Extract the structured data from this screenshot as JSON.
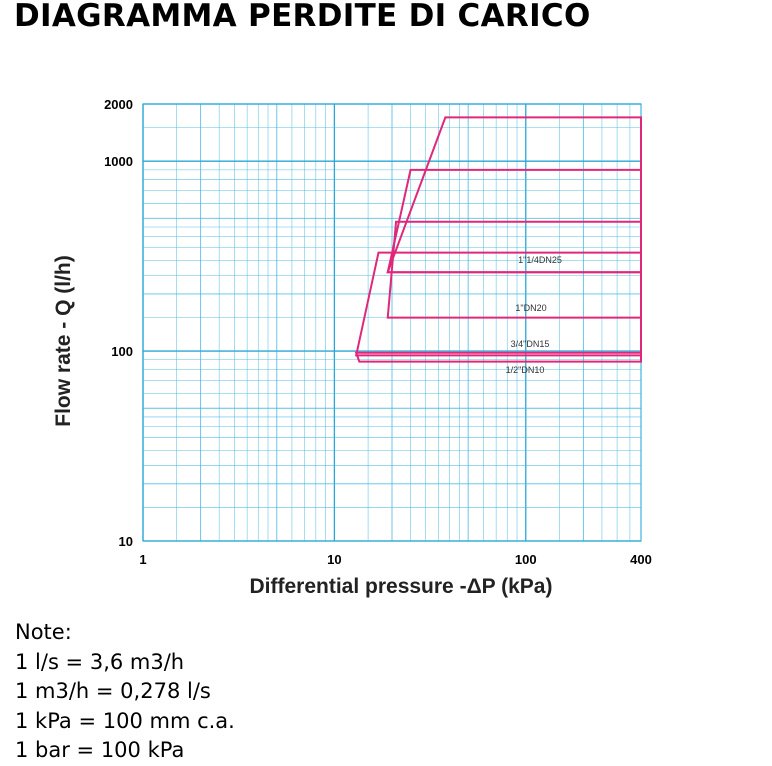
{
  "page": {
    "title": "DIAGRAMMA PERDITE DI CARICO",
    "notes_heading": "Note:",
    "notes": [
      "1 l/s = 3,6 m3/h",
      "1 m3/h = 0,278 l/s",
      "1 kPa = 100 mm c.a.",
      "1 bar = 100 kPa"
    ]
  },
  "colors": {
    "grid": "#3fb6e0",
    "grid_major": "#2aa6d6",
    "curves": "#e0277a"
  },
  "chart_data": {
    "type": "line",
    "title": "",
    "xlabel": "Differential pressure -ΔP (kPa)",
    "ylabel": "Flow rate - Q (l/h)",
    "x_scale": "log",
    "y_scale": "log",
    "xlim": [
      1,
      400
    ],
    "ylim": [
      10,
      2000
    ],
    "x_ticks": [
      1,
      10,
      100,
      400
    ],
    "x_tick_labels": [
      "1",
      "10",
      "100",
      "400"
    ],
    "y_ticks": [
      10,
      100,
      1000,
      2000
    ],
    "y_tick_labels": [
      "10",
      "100",
      "1000",
      "2000"
    ],
    "grid": true,
    "series": [
      {
        "name": "1/2\"DN10",
        "band": {
          "q_min": 88,
          "q_max": 98,
          "dp_min_at_q_min": 13.5,
          "dp_min_at_q_max": 13
        }
      },
      {
        "name": "3/4\"DN15",
        "band": {
          "q_min": 95,
          "q_max": 330,
          "dp_min_at_q_min": 13,
          "dp_min_at_q_max": 17
        }
      },
      {
        "name": "1\"DN20",
        "band": {
          "q_min": 150,
          "q_max": 480,
          "dp_min_at_q_min": 19,
          "dp_min_at_q_max": 21
        }
      },
      {
        "name": "1\"1/4DN25",
        "band": {
          "q_min": 260,
          "q_max": 900,
          "dp_min_at_q_min": 19,
          "dp_min_at_q_max": 25
        }
      },
      {
        "name": "",
        "band": {
          "q_min": 260,
          "q_max": 1700,
          "dp_min_at_q_min": 19,
          "dp_min_at_q_max": 38
        }
      }
    ],
    "x_max": 400
  }
}
